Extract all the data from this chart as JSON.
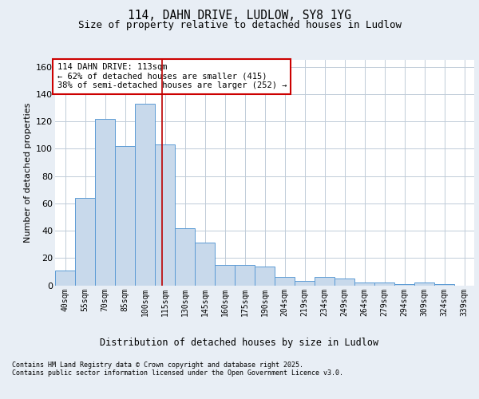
{
  "title_line1": "114, DAHN DRIVE, LUDLOW, SY8 1YG",
  "title_line2": "Size of property relative to detached houses in Ludlow",
  "xlabel": "Distribution of detached houses by size in Ludlow",
  "ylabel": "Number of detached properties",
  "categories": [
    "40sqm",
    "55sqm",
    "70sqm",
    "85sqm",
    "100sqm",
    "115sqm",
    "130sqm",
    "145sqm",
    "160sqm",
    "175sqm",
    "190sqm",
    "204sqm",
    "219sqm",
    "234sqm",
    "249sqm",
    "264sqm",
    "279sqm",
    "294sqm",
    "309sqm",
    "324sqm",
    "339sqm"
  ],
  "values": [
    11,
    64,
    122,
    102,
    133,
    103,
    42,
    31,
    15,
    15,
    14,
    6,
    3,
    6,
    5,
    2,
    2,
    1,
    2,
    1,
    0
  ],
  "bar_color_face": "#c8d9eb",
  "bar_color_edge": "#5b9bd5",
  "background_color": "#e8eef5",
  "plot_background": "#ffffff",
  "grid_color": "#c0ccd8",
  "annotation_text": "114 DAHN DRIVE: 113sqm\n← 62% of detached houses are smaller (415)\n38% of semi-detached houses are larger (252) →",
  "annotation_box_color": "#ffffff",
  "annotation_box_edge": "#cc0000",
  "ylim": [
    0,
    165
  ],
  "yticks": [
    0,
    20,
    40,
    60,
    80,
    100,
    120,
    140,
    160
  ],
  "footer_line1": "Contains HM Land Registry data © Crown copyright and database right 2025.",
  "footer_line2": "Contains public sector information licensed under the Open Government Licence v3.0."
}
